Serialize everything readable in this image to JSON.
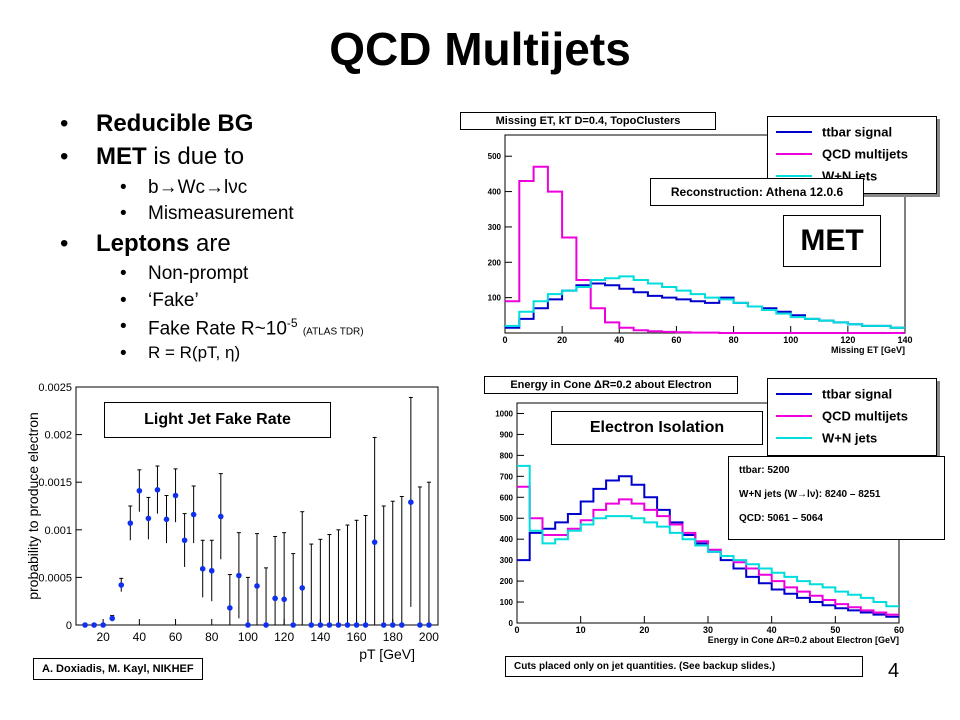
{
  "title": "QCD Multijets",
  "bullets": {
    "b1": "Reducible BG",
    "b2_bold": "MET",
    "b2_rest": " is due to",
    "b2_sub1": "b→Wc→lνc",
    "b2_sub2": "Mismeasurement",
    "b3_bold": "Leptons",
    "b3_rest": " are",
    "b3_sub1": "Non-prompt",
    "b3_sub2": "‘Fake’",
    "b3_sub3_pre": "Fake Rate R~10",
    "b3_sub3_sup": "-5",
    "b3_sub3_note": "(ATLAS TDR)",
    "b3_sub4": "R = R(pT, η)"
  },
  "fake_rate_plot": {
    "label_box": "Light Jet Fake Rate",
    "ylabel": "probability to produce electron",
    "xlabel": "pT [GeV]",
    "yticks": [
      "0",
      "0.0005",
      "0.001",
      "0.0015",
      "0.002",
      "0.0025"
    ],
    "xticks": [
      "20",
      "40",
      "60",
      "80",
      "100",
      "120",
      "140",
      "160",
      "180",
      "200"
    ]
  },
  "met_plot": {
    "title": "Missing ET, kT D=0.4, TopoClusters",
    "annotation": "Reconstruction: Athena 12.0.6",
    "big_label": "MET",
    "xlabel": "Missing ET [GeV]",
    "yticks": [
      "100",
      "200",
      "300",
      "400",
      "500"
    ],
    "xticks": [
      "0",
      "20",
      "40",
      "60",
      "80",
      "100",
      "120",
      "140"
    ]
  },
  "iso_plot": {
    "title": "Energy in Cone ΔR=0.2 about Electron",
    "annotation": "Electron Isolation",
    "xlabel": "Energy in Cone ΔR=0.2 about Electron [GeV]",
    "yticks": [
      "0",
      "100",
      "200",
      "300",
      "400",
      "500",
      "600",
      "700",
      "800",
      "900",
      "1000"
    ],
    "xticks": [
      "0",
      "10",
      "20",
      "30",
      "40",
      "50",
      "60"
    ],
    "counts": {
      "line1": "ttbar: 5200",
      "line2": "W+N jets (W→lν): 8240 – 8251",
      "line3": "QCD: 5061 – 5064"
    }
  },
  "legend": {
    "items": [
      {
        "label": "ttbar signal",
        "color": "#0000cc"
      },
      {
        "label": "QCD multijets",
        "color": "#ee00dd"
      },
      {
        "label": "W+N jets",
        "color": "#00dddd"
      }
    ]
  },
  "footer": {
    "left": "A. Doxiadis, M. Kayl, NIKHEF",
    "right": "Cuts placed only on jet quantities.  (See backup slides.)",
    "page": "4"
  },
  "chart_data": [
    {
      "type": "scatter",
      "title": "Light Jet Fake Rate",
      "xlabel": "pT [GeV]",
      "ylabel": "probability to produce electron",
      "xlim": [
        5,
        205
      ],
      "ylim": [
        0,
        0.0025
      ],
      "x": [
        10,
        15,
        20,
        25,
        30,
        35,
        40,
        45,
        50,
        55,
        60,
        65,
        70,
        75,
        80,
        85,
        90,
        95,
        100,
        105,
        110,
        115,
        120,
        125,
        130,
        135,
        140,
        145,
        150,
        155,
        160,
        165,
        170,
        175,
        180,
        185,
        190,
        195,
        200
      ],
      "y": [
        0,
        0,
        0,
        7e-05,
        0.00042,
        0.00107,
        0.00141,
        0.00112,
        0.00142,
        0.00111,
        0.00136,
        0.00089,
        0.00116,
        0.00059,
        0.00057,
        0.00114,
        0.00018,
        0.00052,
        0,
        0.00041,
        0,
        0.00028,
        0.00027,
        0,
        0.00039,
        0,
        0,
        0,
        0,
        0,
        0,
        0,
        0.00087,
        0,
        0,
        0,
        0.00129,
        0,
        0
      ],
      "yerr": [
        0,
        0,
        0,
        3e-05,
        7e-05,
        0.00018,
        0.00022,
        0.00022,
        0.00025,
        0.00025,
        0.00028,
        0.00028,
        0.0003,
        0.0003,
        0.00032,
        0.00045,
        0.00035,
        0.00045,
        0.0005,
        0.00055,
        0.0006,
        0.00065,
        0.0007,
        0.00075,
        0.0008,
        0.00085,
        0.0009,
        0.00095,
        0.001,
        0.00105,
        0.0011,
        0.00115,
        0.0011,
        0.00125,
        0.0013,
        0.00135,
        0.0011,
        0.00145,
        0.0015
      ]
    },
    {
      "type": "area",
      "title": "Missing ET, kT D=0.4, TopoClusters",
      "xlabel": "Missing ET [GeV]",
      "xlim": [
        0,
        140
      ],
      "ylim": [
        0,
        560
      ],
      "series": [
        {
          "name": "ttbar signal",
          "color": "#0000cc",
          "x": [
            0,
            5,
            10,
            15,
            20,
            25,
            30,
            35,
            40,
            45,
            50,
            55,
            60,
            65,
            70,
            75,
            80,
            85,
            90,
            95,
            100,
            105,
            110,
            115,
            120,
            125,
            130,
            135,
            140
          ],
          "values": [
            15,
            40,
            70,
            95,
            120,
            135,
            140,
            135,
            125,
            115,
            105,
            100,
            95,
            90,
            85,
            100,
            85,
            75,
            70,
            60,
            50,
            40,
            35,
            30,
            25,
            20,
            20,
            15,
            10
          ]
        },
        {
          "name": "QCD multijets",
          "color": "#ee00dd",
          "x": [
            0,
            5,
            10,
            15,
            20,
            25,
            30,
            35,
            40,
            45,
            50,
            55,
            60,
            65,
            70,
            75,
            80,
            85,
            90,
            95,
            100,
            105,
            110,
            115,
            120,
            125,
            130,
            135,
            140
          ],
          "values": [
            90,
            430,
            470,
            400,
            270,
            150,
            70,
            30,
            15,
            8,
            5,
            3,
            2,
            1,
            1,
            0,
            0,
            0,
            0,
            0,
            0,
            0,
            0,
            0,
            0,
            0,
            0,
            0,
            0
          ]
        },
        {
          "name": "W+N jets",
          "color": "#00dddd",
          "x": [
            0,
            5,
            10,
            15,
            20,
            25,
            30,
            35,
            40,
            45,
            50,
            55,
            60,
            65,
            70,
            75,
            80,
            85,
            90,
            95,
            100,
            105,
            110,
            115,
            120,
            125,
            130,
            135,
            140
          ],
          "values": [
            20,
            60,
            90,
            110,
            120,
            130,
            150,
            155,
            160,
            150,
            140,
            130,
            120,
            110,
            100,
            95,
            85,
            75,
            65,
            55,
            45,
            40,
            35,
            30,
            25,
            20,
            20,
            15,
            10
          ]
        }
      ]
    },
    {
      "type": "area",
      "title": "Energy in Cone ΔR=0.2 about Electron",
      "xlabel": "Energy in Cone ΔR=0.2 about Electron [GeV]",
      "xlim": [
        0,
        60
      ],
      "ylim": [
        0,
        1050
      ],
      "series": [
        {
          "name": "ttbar signal",
          "color": "#0000cc",
          "x": [
            0,
            2,
            4,
            6,
            8,
            10,
            12,
            14,
            16,
            18,
            20,
            22,
            24,
            26,
            28,
            30,
            32,
            34,
            36,
            38,
            40,
            42,
            44,
            46,
            48,
            50,
            52,
            54,
            56,
            58,
            60
          ],
          "values": [
            300,
            430,
            450,
            480,
            520,
            580,
            640,
            680,
            700,
            660,
            600,
            540,
            480,
            420,
            380,
            340,
            300,
            260,
            220,
            190,
            160,
            140,
            120,
            100,
            85,
            70,
            60,
            50,
            40,
            30,
            25
          ]
        },
        {
          "name": "QCD multijets",
          "color": "#ee00dd",
          "x": [
            0,
            2,
            4,
            6,
            8,
            10,
            12,
            14,
            16,
            18,
            20,
            22,
            24,
            26,
            28,
            30,
            32,
            34,
            36,
            38,
            40,
            42,
            44,
            46,
            48,
            50,
            52,
            54,
            56,
            58,
            60
          ],
          "values": [
            650,
            500,
            420,
            420,
            450,
            490,
            540,
            570,
            590,
            570,
            540,
            510,
            470,
            430,
            390,
            350,
            320,
            290,
            260,
            230,
            200,
            170,
            150,
            130,
            110,
            90,
            75,
            60,
            50,
            40,
            30
          ]
        },
        {
          "name": "W+N jets",
          "color": "#00dddd",
          "x": [
            0,
            2,
            4,
            6,
            8,
            10,
            12,
            14,
            16,
            18,
            20,
            22,
            24,
            26,
            28,
            30,
            32,
            34,
            36,
            38,
            40,
            42,
            44,
            46,
            48,
            50,
            52,
            54,
            56,
            58,
            60
          ],
          "values": [
            750,
            440,
            380,
            400,
            440,
            470,
            500,
            510,
            510,
            500,
            480,
            460,
            430,
            400,
            370,
            340,
            320,
            300,
            280,
            260,
            240,
            220,
            200,
            185,
            170,
            150,
            135,
            120,
            100,
            80,
            60
          ]
        }
      ]
    }
  ]
}
